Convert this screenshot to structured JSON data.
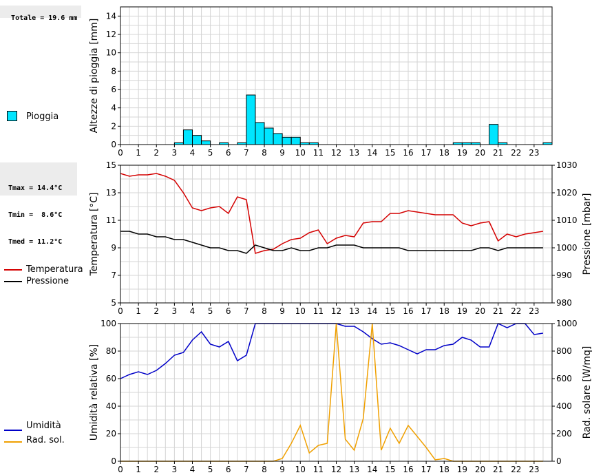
{
  "summary": {
    "total_rain": "Totale = 19.6 mm",
    "tmax": "Tmax = 14.4°C",
    "tmin": "Tmin =  8.6°C",
    "tmed": "Tmed = 11.2°C"
  },
  "legend": {
    "rain": "Pioggia",
    "temperature": "Temperatura",
    "pressure": "Pressione",
    "humidity": "Umidità",
    "radiation": "Rad. sol."
  },
  "colors": {
    "rain": "#00e5ff",
    "temperature": "#d40000",
    "pressure": "#000000",
    "humidity": "#0000c8",
    "radiation": "#f0a000",
    "grid": "#d4d4d4"
  },
  "chart_data": [
    {
      "type": "bar",
      "name": "rain",
      "ylabel": "Altezze di pioggia [mm]",
      "xlim": [
        0,
        24
      ],
      "ylim": [
        0,
        15
      ],
      "xticks": [
        "0",
        "1",
        "2",
        "3",
        "4",
        "5",
        "6",
        "7",
        "8",
        "9",
        "10",
        "11",
        "12",
        "13",
        "14",
        "15",
        "16",
        "17",
        "18",
        "19",
        "20",
        "21",
        "22",
        "23"
      ],
      "yticks": [
        "0",
        "2",
        "4",
        "6",
        "8",
        "10",
        "12",
        "14"
      ],
      "bar_width_h": 0.5,
      "bars": [
        {
          "x": 3.0,
          "value": 0.2
        },
        {
          "x": 3.5,
          "value": 1.6
        },
        {
          "x": 4.0,
          "value": 1.0
        },
        {
          "x": 4.5,
          "value": 0.4
        },
        {
          "x": 5.5,
          "value": 0.2
        },
        {
          "x": 6.5,
          "value": 0.2
        },
        {
          "x": 7.0,
          "value": 5.4
        },
        {
          "x": 7.5,
          "value": 2.4
        },
        {
          "x": 8.0,
          "value": 1.8
        },
        {
          "x": 8.5,
          "value": 1.2
        },
        {
          "x": 9.0,
          "value": 0.8
        },
        {
          "x": 9.5,
          "value": 0.8
        },
        {
          "x": 10.0,
          "value": 0.2
        },
        {
          "x": 10.5,
          "value": 0.2
        },
        {
          "x": 18.5,
          "value": 0.2
        },
        {
          "x": 19.0,
          "value": 0.2
        },
        {
          "x": 19.5,
          "value": 0.2
        },
        {
          "x": 20.5,
          "value": 2.2
        },
        {
          "x": 21.0,
          "value": 0.2
        },
        {
          "x": 23.5,
          "value": 0.2
        }
      ]
    },
    {
      "type": "line",
      "name": "temperature-pressure",
      "ylabel": "Temperatura [°C]",
      "y2label": "Pressione [mbar]",
      "xlim": [
        0,
        24
      ],
      "ylim": [
        5,
        15
      ],
      "y2lim": [
        980,
        1030
      ],
      "xticks": [
        "0",
        "1",
        "2",
        "3",
        "4",
        "5",
        "6",
        "7",
        "8",
        "9",
        "10",
        "11",
        "12",
        "13",
        "14",
        "15",
        "16",
        "17",
        "18",
        "19",
        "20",
        "21",
        "22",
        "23"
      ],
      "yticks": [
        "5",
        "7",
        "9",
        "11",
        "13",
        "15"
      ],
      "y2ticks": [
        "980",
        "990",
        "1000",
        "1010",
        "1020",
        "1030"
      ],
      "series": [
        {
          "name": "Temperatura",
          "axis": "left",
          "x": [
            0,
            0.5,
            1,
            1.5,
            2,
            2.5,
            3,
            3.5,
            4,
            4.5,
            5,
            5.5,
            6,
            6.5,
            7,
            7.5,
            8,
            8.5,
            9,
            9.5,
            10,
            10.5,
            11,
            11.5,
            12,
            12.5,
            13,
            13.5,
            14,
            14.5,
            15,
            15.5,
            16,
            16.5,
            17,
            17.5,
            18,
            18.5,
            19,
            19.5,
            20,
            20.5,
            21,
            21.5,
            22,
            22.5,
            23,
            23.5
          ],
          "y": [
            14.4,
            14.2,
            14.3,
            14.3,
            14.4,
            14.2,
            13.9,
            13.0,
            11.9,
            11.7,
            11.9,
            12.0,
            11.5,
            12.7,
            12.5,
            8.6,
            8.8,
            8.9,
            9.3,
            9.6,
            9.7,
            10.1,
            10.3,
            9.3,
            9.7,
            9.9,
            9.8,
            10.8,
            10.9,
            10.9,
            11.5,
            11.5,
            11.7,
            11.6,
            11.5,
            11.4,
            11.4,
            11.4,
            10.8,
            10.6,
            10.8,
            10.9,
            9.5,
            10.0,
            9.8,
            10.0,
            10.1,
            10.2
          ]
        },
        {
          "name": "Pressione",
          "axis": "right",
          "x": [
            0,
            0.5,
            1,
            1.5,
            2,
            2.5,
            3,
            3.5,
            4,
            4.5,
            5,
            5.5,
            6,
            6.5,
            7,
            7.5,
            8,
            8.5,
            9,
            9.5,
            10,
            10.5,
            11,
            11.5,
            12,
            12.5,
            13,
            13.5,
            14,
            14.5,
            15,
            15.5,
            16,
            16.5,
            17,
            17.5,
            18,
            18.5,
            19,
            19.5,
            20,
            20.5,
            21,
            21.5,
            22,
            22.5,
            23,
            23.5
          ],
          "y": [
            1006,
            1006,
            1005,
            1005,
            1004,
            1004,
            1003,
            1003,
            1002,
            1001,
            1000,
            1000,
            999,
            999,
            998,
            1001,
            1000,
            999,
            999,
            1000,
            999,
            999,
            1000,
            1000,
            1001,
            1001,
            1001,
            1000,
            1000,
            1000,
            1000,
            1000,
            999,
            999,
            999,
            999,
            999,
            999,
            999,
            999,
            1000,
            1000,
            999,
            1000,
            1000,
            1000,
            1000,
            1000
          ]
        }
      ]
    },
    {
      "type": "line",
      "name": "humidity-radiation",
      "ylabel": "Umidità relativa [%]",
      "y2label": "Rad. solare [W/mq]",
      "xlim": [
        0,
        24
      ],
      "ylim": [
        0,
        100
      ],
      "y2lim": [
        0,
        1000
      ],
      "xticks": [
        "0",
        "1",
        "2",
        "3",
        "4",
        "5",
        "6",
        "7",
        "8",
        "9",
        "10",
        "11",
        "12",
        "13",
        "14",
        "15",
        "16",
        "17",
        "18",
        "19",
        "20",
        "21",
        "22",
        "23"
      ],
      "yticks": [
        "0",
        "20",
        "40",
        "60",
        "80",
        "100"
      ],
      "y2ticks": [
        "0",
        "200",
        "400",
        "600",
        "800",
        "1000"
      ],
      "series": [
        {
          "name": "Umidità",
          "axis": "left",
          "x": [
            0,
            0.5,
            1,
            1.5,
            2,
            2.5,
            3,
            3.5,
            4,
            4.5,
            5,
            5.5,
            6,
            6.5,
            7,
            7.5,
            8,
            8.5,
            9,
            9.5,
            10,
            10.5,
            11,
            11.5,
            12,
            12.5,
            13,
            13.5,
            14,
            14.5,
            15,
            15.5,
            16,
            16.5,
            17,
            17.5,
            18,
            18.5,
            19,
            19.5,
            20,
            20.5,
            21,
            21.5,
            22,
            22.5,
            23,
            23.5
          ],
          "y": [
            60,
            63,
            65,
            63,
            66,
            71,
            77,
            79,
            88,
            94,
            85,
            83,
            87,
            73,
            77,
            100,
            100,
            100,
            100,
            100,
            100,
            100,
            100,
            100,
            100,
            98,
            98,
            94,
            89,
            85,
            86,
            84,
            81,
            78,
            81,
            81,
            84,
            85,
            90,
            88,
            83,
            83,
            100,
            97,
            100,
            100,
            92,
            93
          ]
        },
        {
          "name": "Rad. sol.",
          "axis": "right",
          "x": [
            0,
            0.5,
            1,
            1.5,
            2,
            2.5,
            3,
            3.5,
            4,
            4.5,
            5,
            5.5,
            6,
            6.5,
            7,
            7.5,
            8,
            8.5,
            9,
            9.5,
            10,
            10.5,
            11,
            11.5,
            12,
            12.5,
            13,
            13.5,
            14,
            14.5,
            15,
            15.5,
            16,
            16.5,
            17,
            17.5,
            18,
            18.5,
            19,
            19.5,
            20,
            20.5,
            21,
            21.5,
            22,
            22.5,
            23,
            23.5
          ],
          "y": [
            0,
            0,
            0,
            0,
            0,
            0,
            0,
            0,
            0,
            0,
            0,
            0,
            0,
            0,
            0,
            0,
            0,
            0,
            20,
            130,
            260,
            60,
            115,
            130,
            1000,
            160,
            80,
            310,
            1000,
            80,
            240,
            130,
            260,
            180,
            100,
            10,
            20,
            0,
            0,
            0,
            0,
            0,
            0,
            0,
            0,
            0,
            0,
            0
          ]
        }
      ]
    }
  ]
}
